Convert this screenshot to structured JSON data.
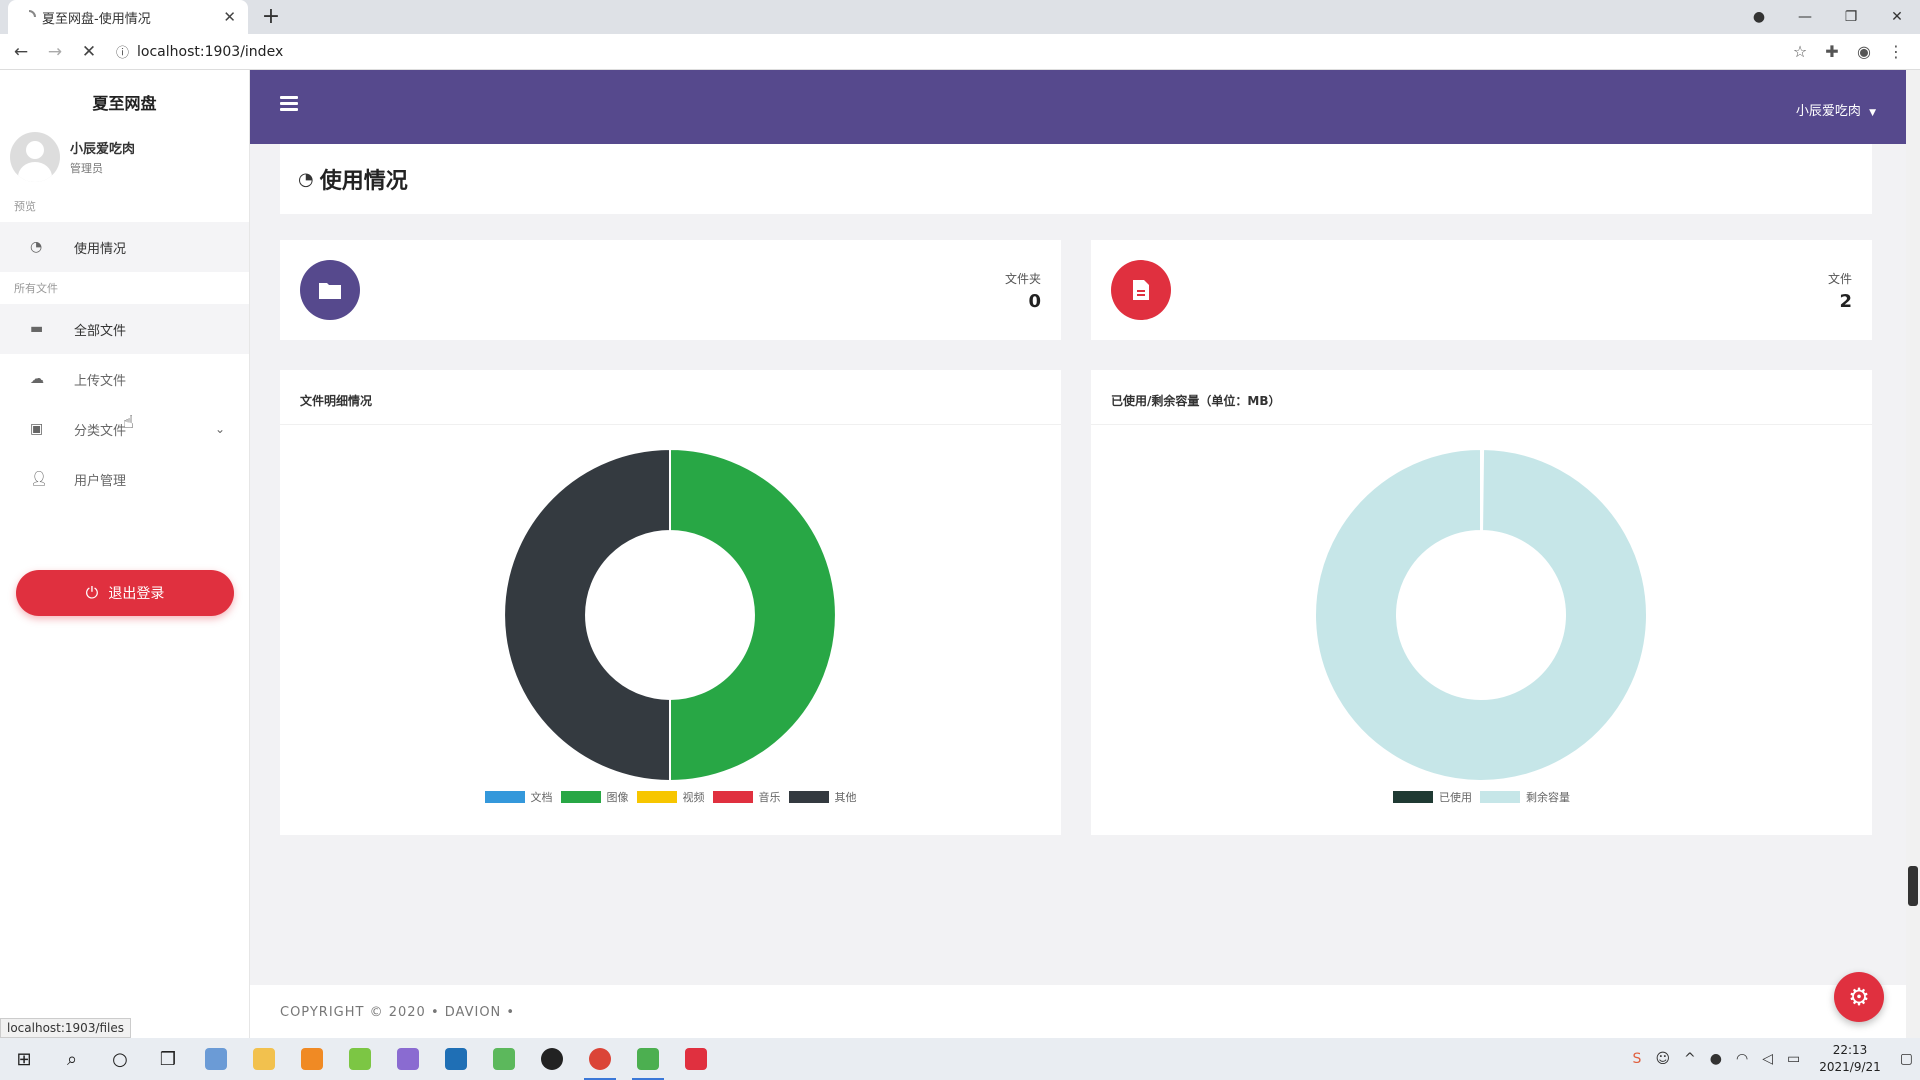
{
  "browser": {
    "tab_title": "夏至网盘-使用情况",
    "url": "localhost:1903/index",
    "status_url": "localhost:1903/files"
  },
  "sidebar": {
    "brand": "夏至网盘",
    "user_name": "小辰爱吃肉",
    "user_role": "管理员",
    "section_overview": "预览",
    "section_files": "所有文件",
    "items": [
      {
        "label": "使用情况",
        "icon": "dashboard-icon"
      },
      {
        "label": "全部文件",
        "icon": "folder-icon"
      },
      {
        "label": "上传文件",
        "icon": "cloud-upload-icon"
      },
      {
        "label": "分类文件",
        "icon": "box-icon"
      },
      {
        "label": "用户管理",
        "icon": "user-icon"
      }
    ],
    "logout_label": "退出登录"
  },
  "header": {
    "user_menu": "小辰爱吃肉"
  },
  "page": {
    "title": "使用情况"
  },
  "stats": [
    {
      "label": "文件夹",
      "value": "0",
      "icon": "folder-icon",
      "color": "#56498d"
    },
    {
      "label": "文件",
      "value": "2",
      "icon": "file-icon",
      "color": "#e0303f"
    }
  ],
  "charts": {
    "left_title": "文件明细情况",
    "right_title": "已使用/剩余容量（单位：MB）"
  },
  "chart_data": [
    {
      "type": "pie",
      "title": "文件明细情况",
      "categories": [
        "文档",
        "图像",
        "视频",
        "音乐",
        "其他"
      ],
      "values": [
        0,
        1,
        0,
        0,
        1
      ],
      "colors": [
        "#3498db",
        "#28a745",
        "#f7c600",
        "#e0303f",
        "#343a40"
      ],
      "legend": "bottom"
    },
    {
      "type": "pie",
      "title": "已使用/剩余容量（单位：MB）",
      "categories": [
        "已使用",
        "剩余容量"
      ],
      "values": [
        0.002,
        1
      ],
      "colors": [
        "#1f3a33",
        "#c6e6e8"
      ],
      "legend": "bottom"
    }
  ],
  "footer": {
    "text": "COPYRIGHT © 2020  •  DAVION  •"
  },
  "taskbar": {
    "time": "22:13",
    "date": "2021/9/21"
  }
}
